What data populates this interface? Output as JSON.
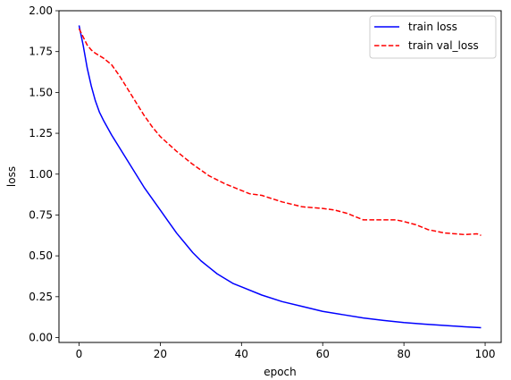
{
  "chart_data": {
    "type": "line",
    "xlabel": "epoch",
    "ylabel": "loss",
    "xlim": [
      -4.95,
      103.95
    ],
    "ylim": [
      -0.03,
      2.0
    ],
    "xticks": [
      0,
      20,
      40,
      60,
      80,
      100
    ],
    "xtick_labels": [
      "0",
      "20",
      "40",
      "60",
      "80",
      "100"
    ],
    "yticks": [
      0.0,
      0.25,
      0.5,
      0.75,
      1.0,
      1.25,
      1.5,
      1.75,
      2.0
    ],
    "ytick_labels": [
      "0.00",
      "0.25",
      "0.50",
      "0.75",
      "1.00",
      "1.25",
      "1.50",
      "1.75",
      "2.00"
    ],
    "grid": false,
    "legend_position": "upper right",
    "series": [
      {
        "name": "train loss",
        "color": "#0000ff",
        "style": "solid",
        "x": [
          0,
          1,
          2,
          3,
          4,
          5,
          6,
          8,
          10,
          12,
          14,
          16,
          18,
          20,
          22,
          24,
          26,
          28,
          30,
          32,
          34,
          36,
          38,
          40,
          45,
          50,
          55,
          60,
          65,
          70,
          75,
          80,
          85,
          90,
          95,
          99
        ],
        "y": [
          1.91,
          1.79,
          1.65,
          1.54,
          1.45,
          1.38,
          1.33,
          1.24,
          1.16,
          1.08,
          1.0,
          0.92,
          0.85,
          0.78,
          0.71,
          0.64,
          0.58,
          0.52,
          0.47,
          0.43,
          0.39,
          0.36,
          0.33,
          0.31,
          0.26,
          0.22,
          0.19,
          0.16,
          0.14,
          0.12,
          0.105,
          0.092,
          0.082,
          0.074,
          0.066,
          0.06
        ]
      },
      {
        "name": "train val_loss",
        "color": "#ff0000",
        "style": "dashed",
        "x": [
          0,
          1,
          2,
          3,
          4,
          6,
          8,
          10,
          12,
          14,
          16,
          18,
          20,
          24,
          28,
          32,
          36,
          40,
          42,
          45,
          50,
          55,
          60,
          63,
          66,
          70,
          75,
          78,
          80,
          83,
          86,
          90,
          95,
          98,
          99
        ],
        "y": [
          1.89,
          1.84,
          1.79,
          1.76,
          1.74,
          1.71,
          1.67,
          1.6,
          1.52,
          1.44,
          1.36,
          1.29,
          1.23,
          1.14,
          1.06,
          0.99,
          0.94,
          0.9,
          0.88,
          0.87,
          0.83,
          0.8,
          0.79,
          0.78,
          0.76,
          0.72,
          0.72,
          0.72,
          0.71,
          0.69,
          0.66,
          0.64,
          0.63,
          0.635,
          0.625
        ]
      }
    ]
  }
}
